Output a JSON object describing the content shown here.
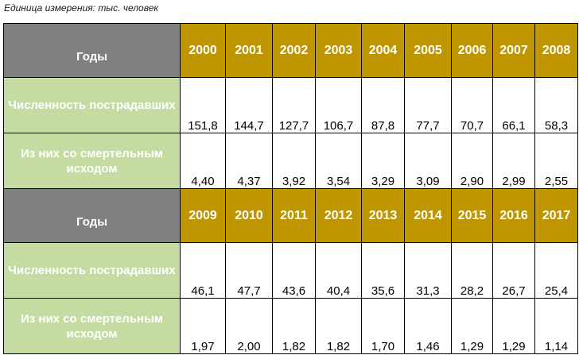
{
  "unit_note": "Единица измерения: тыс. человек",
  "labels": {
    "years": "Годы",
    "victims": "Численность пострадавших",
    "fatal": "Из них со смертельным исходом"
  },
  "blocks": [
    {
      "years": [
        "2000",
        "2001",
        "2002",
        "2003",
        "2004",
        "2005",
        "2006",
        "2007",
        "2008"
      ],
      "victims": [
        "151,8",
        "144,7",
        "127,7",
        "106,7",
        "87,8",
        "77,7",
        "70,7",
        "66,1",
        "58,3"
      ],
      "fatal": [
        "4,40",
        "4,37",
        "3,92",
        "3,54",
        "3,29",
        "3,09",
        "2,90",
        "2,99",
        "2,55"
      ]
    },
    {
      "years": [
        "2009",
        "2010",
        "2011",
        "2012",
        "2013",
        "2014",
        "2015",
        "2016",
        "2017"
      ],
      "victims": [
        "46,1",
        "47,7",
        "43,6",
        "40,4",
        "35,6",
        "31,3",
        "28,2",
        "26,7",
        "25,4"
      ],
      "fatal": [
        "1,97",
        "2,00",
        "1,82",
        "1,82",
        "1,70",
        "1,46",
        "1,29",
        "1,29",
        "1,14"
      ]
    }
  ],
  "colors": {
    "year_header": "#c09600",
    "label_header": "#808080",
    "label_row": "#c4dca2"
  }
}
